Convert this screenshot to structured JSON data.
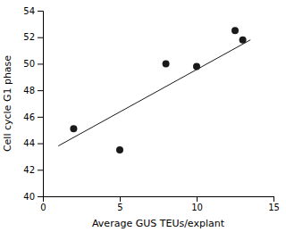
{
  "chart_data": {
    "type": "scatter",
    "xlabel": "Average GUS TEUs/explant",
    "ylabel": "Cell cycle G1 phase",
    "x": [
      2,
      5,
      8,
      10,
      12.5,
      13
    ],
    "values": [
      45.1,
      43.5,
      50.0,
      49.8,
      52.5,
      51.8
    ],
    "color": "#1a1a1a",
    "xlim": [
      0,
      15
    ],
    "ylim": [
      40,
      54
    ],
    "xticks": [
      0,
      5,
      10,
      15
    ],
    "yticks": [
      40,
      42,
      44,
      46,
      48,
      50,
      52,
      54
    ],
    "trend_line": {
      "type": "line",
      "x": [
        1.0,
        13.5
      ],
      "values": [
        43.8,
        51.8
      ],
      "color": "#1a1a1a"
    }
  }
}
